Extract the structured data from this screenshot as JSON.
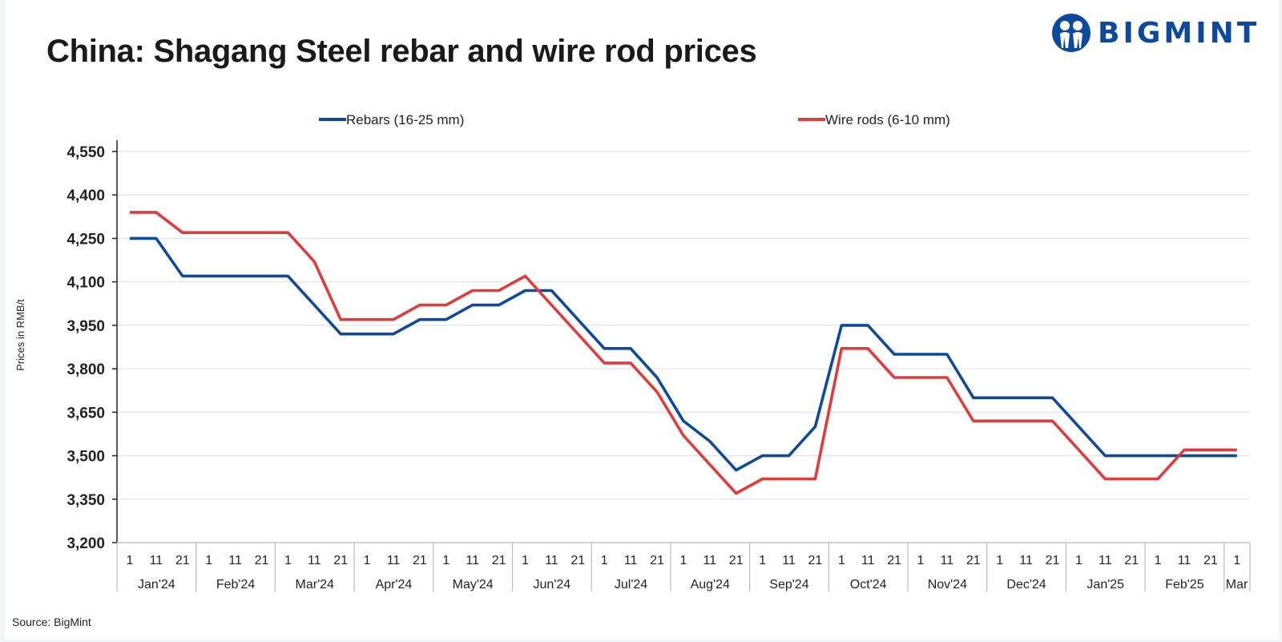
{
  "title": "China: Shagang Steel rebar and wire rod prices",
  "logo": {
    "text": "BIGMINT",
    "icon": "bigmint-people-icon",
    "color": "#0d4a9e"
  },
  "source": "Source: BigMint",
  "chart_data": {
    "type": "line",
    "title": "China: Shagang Steel rebar and wire rod prices",
    "xlabel": "",
    "ylabel": "Prices in RMB/t",
    "ylim": [
      3200,
      4550
    ],
    "yticks": [
      3200,
      3350,
      3500,
      3650,
      3800,
      3950,
      4100,
      4250,
      4400,
      4550
    ],
    "ytick_labels": [
      "3,200",
      "3,350",
      "3,500",
      "3,650",
      "3,800",
      "3,950",
      "4,100",
      "4,250",
      "4,400",
      "4,550"
    ],
    "grid": true,
    "legend_position": "top",
    "day_ticks": [
      "1",
      "11",
      "21"
    ],
    "months": [
      "Jan'24",
      "Feb'24",
      "Mar'24",
      "Apr'24",
      "May'24",
      "Jun'24",
      "Jul'24",
      "Aug'24",
      "Sep'24",
      "Oct'24",
      "Nov'24",
      "Dec'24",
      "Jan'25",
      "Feb'25",
      "Mar"
    ],
    "x": [
      "Jan'24-1",
      "Jan'24-11",
      "Jan'24-21",
      "Feb'24-1",
      "Feb'24-11",
      "Feb'24-21",
      "Mar'24-1",
      "Mar'24-11",
      "Mar'24-21",
      "Apr'24-1",
      "Apr'24-11",
      "Apr'24-21",
      "May'24-1",
      "May'24-11",
      "May'24-21",
      "Jun'24-1",
      "Jun'24-11",
      "Jun'24-21",
      "Jul'24-1",
      "Jul'24-11",
      "Jul'24-21",
      "Aug'24-1",
      "Aug'24-11",
      "Aug'24-21",
      "Sep'24-1",
      "Sep'24-11",
      "Sep'24-21",
      "Oct'24-1",
      "Oct'24-11",
      "Oct'24-21",
      "Nov'24-1",
      "Nov'24-11",
      "Nov'24-21",
      "Dec'24-1",
      "Dec'24-11",
      "Dec'24-21",
      "Jan'25-1",
      "Jan'25-11",
      "Jan'25-21",
      "Feb'25-1",
      "Feb'25-11",
      "Feb'25-21",
      "Mar-1"
    ],
    "series": [
      {
        "name": "Rebars (16-25 mm)",
        "color": "#0d4a9e",
        "values": [
          4250,
          4250,
          4120,
          4120,
          4120,
          4120,
          4120,
          4020,
          3920,
          3920,
          3920,
          3970,
          3970,
          4020,
          4020,
          4070,
          4070,
          3970,
          3870,
          3870,
          3770,
          3620,
          3550,
          3450,
          3500,
          3500,
          3600,
          3950,
          3950,
          3850,
          3850,
          3850,
          3700,
          3700,
          3700,
          3700,
          3600,
          3500,
          3500,
          3500,
          3500,
          3500,
          3500
        ]
      },
      {
        "name": "Wire rods (6-10 mm)",
        "color": "#e03c3c",
        "values": [
          4340,
          4340,
          4270,
          4270,
          4270,
          4270,
          4270,
          4170,
          3970,
          3970,
          3970,
          4020,
          4020,
          4070,
          4070,
          4120,
          4020,
          3920,
          3820,
          3820,
          3720,
          3570,
          3470,
          3370,
          3420,
          3420,
          3420,
          3870,
          3870,
          3770,
          3770,
          3770,
          3620,
          3620,
          3620,
          3620,
          3520,
          3420,
          3420,
          3420,
          3520,
          3520,
          3520
        ]
      }
    ]
  }
}
